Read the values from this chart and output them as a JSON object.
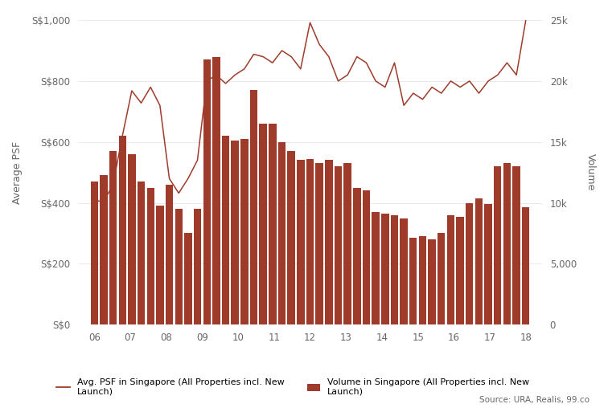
{
  "ylabel_left": "Average PSF",
  "ylabel_right": "Volume",
  "bar_color": "#9E3B2A",
  "line_color": "#9E3B2A",
  "background_color": "#ffffff",
  "grid_color": "#e8e8e8",
  "source_text": "Source: URA, Realis, 99.co",
  "legend_line_label": "Avg. PSF in Singapore (All Properties incl. New\nLaunch)",
  "legend_bar_label": "Volume in Singapore (All Properties incl. New\nLaunch)",
  "bar_values": [
    470,
    490,
    570,
    620,
    560,
    470,
    450,
    390,
    460,
    380,
    300,
    380,
    870,
    880,
    620,
    605,
    610,
    770,
    660,
    660,
    600,
    570,
    540,
    545,
    530,
    540,
    520,
    530,
    450,
    440,
    370,
    365,
    360,
    350,
    285,
    290,
    280,
    300,
    360,
    355,
    400,
    415,
    395,
    520,
    530,
    520,
    385
  ],
  "line_values": [
    10200,
    10100,
    11500,
    15500,
    19200,
    18200,
    19500,
    18000,
    12000,
    10800,
    12000,
    13500,
    20000,
    20500,
    19800,
    20500,
    21000,
    22200,
    22000,
    21500,
    22500,
    22000,
    21000,
    24800,
    23000,
    22000,
    20000,
    20500,
    22000,
    21500,
    20000,
    19500,
    21500,
    18000,
    19000,
    18500,
    19500,
    19000,
    20000,
    19500,
    20000,
    19000,
    20000,
    20500,
    21500,
    20500,
    25000
  ],
  "ylim_left": [
    0,
    1000
  ],
  "ylim_right": [
    0,
    25000
  ],
  "yticks_left": [
    0,
    200,
    400,
    600,
    800,
    1000
  ],
  "ytick_labels_left": [
    "S$0",
    "S$200",
    "S$400",
    "S$600",
    "S$800",
    "S$1,000"
  ],
  "yticks_right": [
    0,
    5000,
    10000,
    15000,
    20000,
    25000
  ],
  "ytick_labels_right": [
    "0",
    "5,000",
    "10k",
    "15k",
    "20k",
    "25k"
  ],
  "x_year_ticks": [
    2006,
    2007,
    2008,
    2009,
    2010,
    2011,
    2012,
    2013,
    2014,
    2015,
    2016,
    2017,
    2018
  ],
  "x_year_labels": [
    "06",
    "07",
    "08",
    "09",
    "10",
    "11",
    "12",
    "13",
    "14",
    "15",
    "16",
    "17",
    "18"
  ],
  "n_bars": 47,
  "x_start": 2006.0,
  "x_end": 2018.0,
  "figsize": [
    7.56,
    5.08
  ],
  "dpi": 100
}
